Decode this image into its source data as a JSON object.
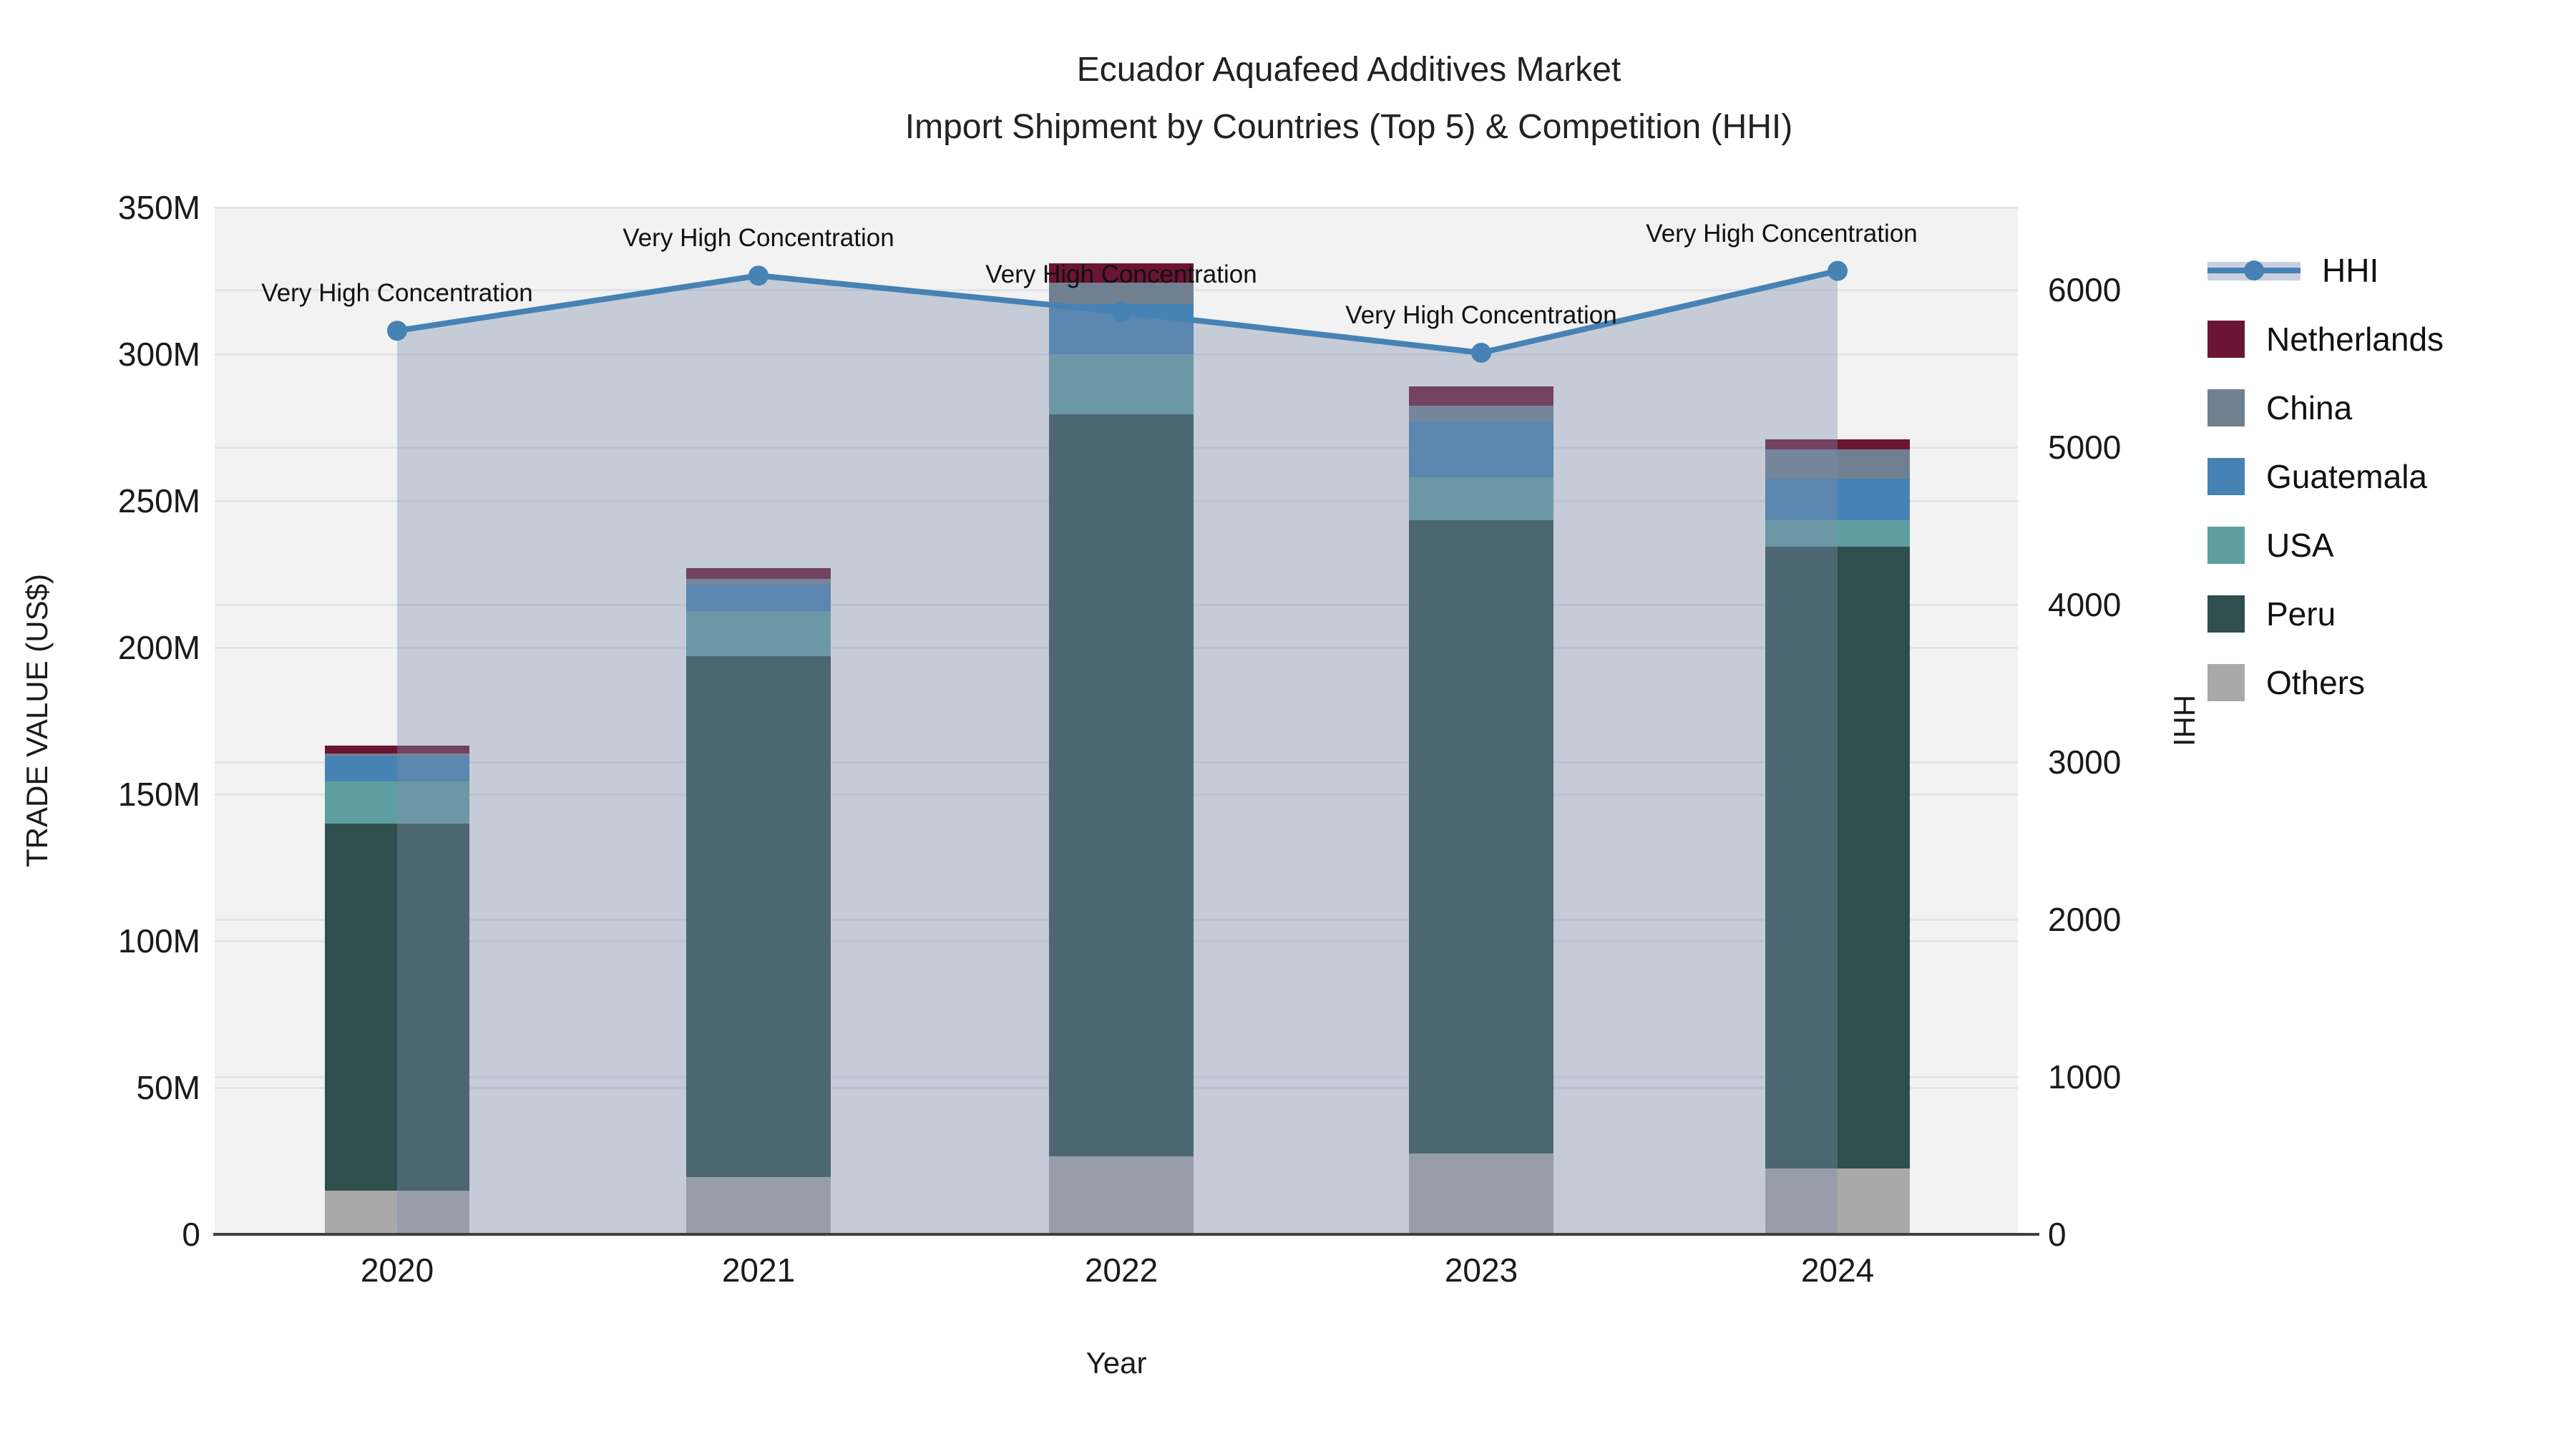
{
  "title": {
    "line1": "Ecuador Aquafeed Additives Market",
    "line2": "Import Shipment by Countries (Top 5) & Competition (HHI)"
  },
  "axes": {
    "x": {
      "label": "Year",
      "ticks": [
        "2020",
        "2021",
        "2022",
        "2023",
        "2024"
      ]
    },
    "y_left": {
      "label": "TRADE VALUE (US$)",
      "ticks": [
        "0",
        "50M",
        "100M",
        "150M",
        "200M",
        "250M",
        "300M",
        "350M"
      ]
    },
    "y_right": {
      "label": "HHI",
      "ticks": [
        "0",
        "1000",
        "2000",
        "3000",
        "4000",
        "5000",
        "6000"
      ]
    }
  },
  "legend": {
    "items": [
      {
        "label": "HHI",
        "type": "line",
        "color": "#4682B4",
        "band": "#C9D0DC"
      },
      {
        "label": "Netherlands",
        "type": "swatch",
        "color": "#6B1433"
      },
      {
        "label": "China",
        "type": "swatch",
        "color": "#708090"
      },
      {
        "label": "Guatemala",
        "type": "swatch",
        "color": "#4682B4"
      },
      {
        "label": "USA",
        "type": "swatch",
        "color": "#5F9EA0"
      },
      {
        "label": "Peru",
        "type": "swatch",
        "color": "#2F4F4F"
      },
      {
        "label": "Others",
        "type": "swatch",
        "color": "#A9A9A9"
      }
    ]
  },
  "chart_data": {
    "type": "bar",
    "stacked": true,
    "title": "Ecuador Aquafeed Additives Market Import Shipment by Countries (Top 5) & Competition (HHI)",
    "xlabel": "Year",
    "ylabel": "TRADE VALUE (US$)",
    "y2label": "HHI",
    "categories": [
      "2020",
      "2021",
      "2022",
      "2023",
      "2024"
    ],
    "series": [
      {
        "name": "Others",
        "color": "#A9A9A9",
        "values_musd": [
          15,
          19.5,
          26.5,
          27.5,
          22.5
        ]
      },
      {
        "name": "Peru",
        "color": "#2F4F4F",
        "values_musd": [
          125,
          177.5,
          253,
          216,
          212
        ]
      },
      {
        "name": "USA",
        "color": "#5F9EA0",
        "values_musd": [
          14.5,
          15.5,
          20.5,
          14.5,
          9
        ]
      },
      {
        "name": "Guatemala",
        "color": "#4682B4",
        "values_musd": [
          8.5,
          9,
          17,
          19,
          14
        ]
      },
      {
        "name": "China",
        "color": "#708090",
        "values_musd": [
          1,
          2,
          7.5,
          5.5,
          10
        ]
      },
      {
        "name": "Netherlands",
        "color": "#6B1433",
        "values_musd": [
          2.5,
          3.5,
          6.5,
          6.5,
          3.5
        ]
      }
    ],
    "totals_musd": [
      166.5,
      227,
      331,
      289,
      271
    ],
    "line_series": {
      "name": "HHI",
      "axis": "right",
      "color": "#4682B4",
      "area_fill": "rgba(125,143,172,0.38)",
      "values": [
        5740,
        6090,
        5860,
        5600,
        6120
      ]
    },
    "annotation_text": "Very High Concentration",
    "annotation_per_point": [
      "2020",
      "2021",
      "2022",
      "2023",
      "2024"
    ],
    "ylim_musd": [
      0,
      350
    ],
    "y2lim": [
      0,
      6523
    ],
    "grid": true,
    "legend_position": "right",
    "plot_background": "#f2f2f2"
  }
}
